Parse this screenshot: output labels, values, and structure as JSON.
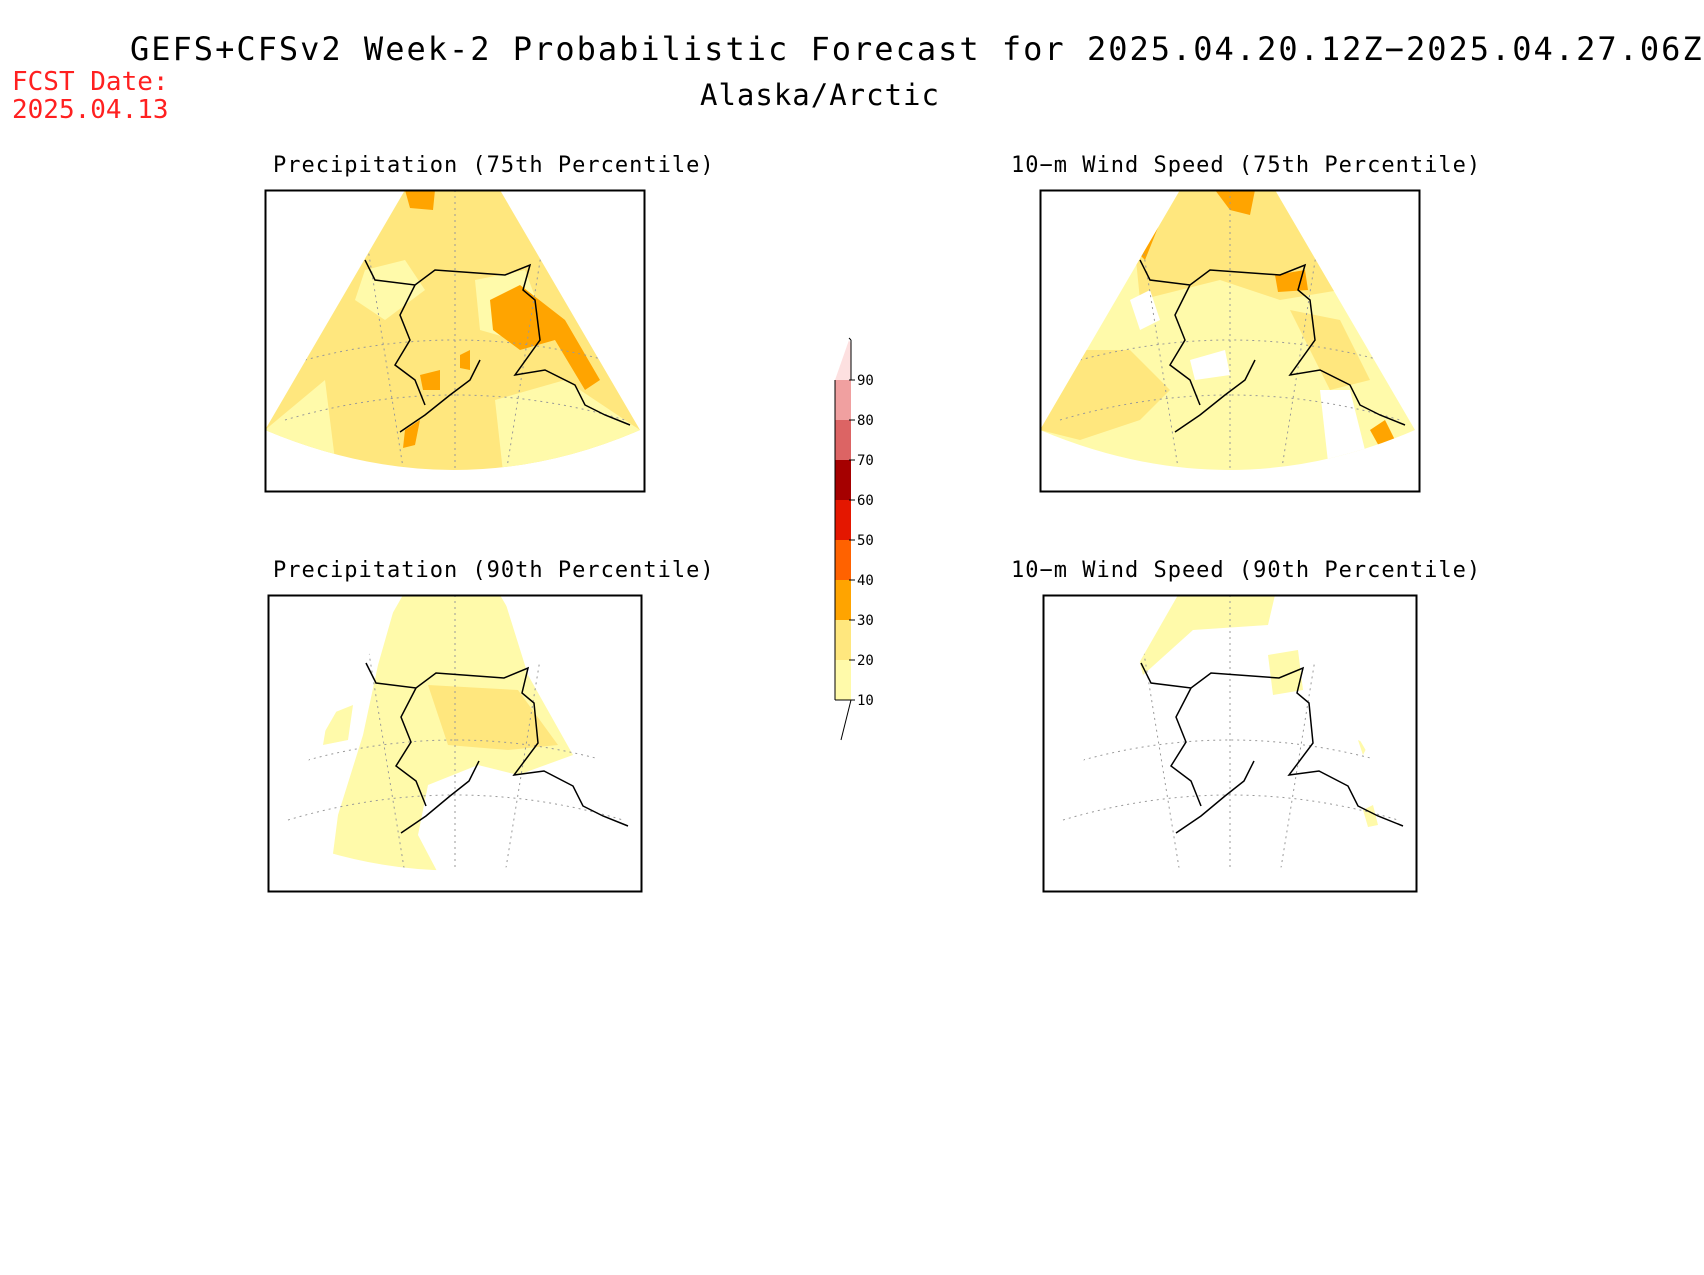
{
  "header": {
    "title": "GEFS+CFSv2 Week-2 Probabilistic Forecast for 2025.04.20.12Z−2025.04.27.06Z",
    "region": "Alaska/Arctic",
    "fcst_label": "FCST Date:",
    "fcst_date": "2025.04.13"
  },
  "panels": [
    {
      "id": "precip-75",
      "title": "Precipitation (75th Percentile)"
    },
    {
      "id": "wind-75",
      "title": "10−m Wind Speed (75th Percentile)"
    },
    {
      "id": "precip-90",
      "title": "Precipitation (90th Percentile)"
    },
    {
      "id": "wind-90",
      "title": "10−m Wind Speed (90th Percentile)"
    }
  ],
  "colorbar": {
    "ticks": [
      "10",
      "20",
      "30",
      "40",
      "50",
      "60",
      "70",
      "80",
      "90"
    ],
    "colors": {
      "10-20": "#fffaaa",
      "20-30": "#ffe77e",
      "30-40": "#ffa400",
      "40-50": "#ff6200",
      "50-60": "#e41700",
      "60-70": "#a50000",
      "70-80": "#dc6464",
      "80-90": "#f0a0a0",
      "90+": "#fde0e0"
    }
  }
}
